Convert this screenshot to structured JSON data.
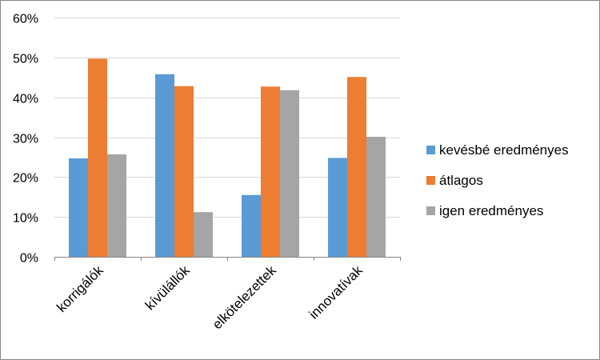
{
  "chart_data": {
    "type": "bar",
    "categories": [
      "korrigálók",
      "kívülállók",
      "elkötelezettek",
      "innovatívak"
    ],
    "series": [
      {
        "name": "kevésbé eredményes",
        "color": "#5B9BD5",
        "values": [
          0.247,
          0.458,
          0.155,
          0.248
        ]
      },
      {
        "name": "átlagos",
        "color": "#ED7D31",
        "values": [
          0.497,
          0.428,
          0.427,
          0.451
        ]
      },
      {
        "name": "igen eredményes",
        "color": "#A5A5A5",
        "values": [
          0.257,
          0.112,
          0.418,
          0.301
        ]
      }
    ],
    "y_ticks": [
      0,
      0.1,
      0.2,
      0.3,
      0.4,
      0.5,
      0.6
    ],
    "y_tick_labels": [
      "0%",
      "10%",
      "20%",
      "30%",
      "40%",
      "50%",
      "60%"
    ],
    "ylim": [
      0,
      0.6
    ],
    "grid": true,
    "legend": "right",
    "colors": {
      "gridline": "#D9D9D9",
      "axis": "#868686",
      "frame": "#868686"
    }
  }
}
